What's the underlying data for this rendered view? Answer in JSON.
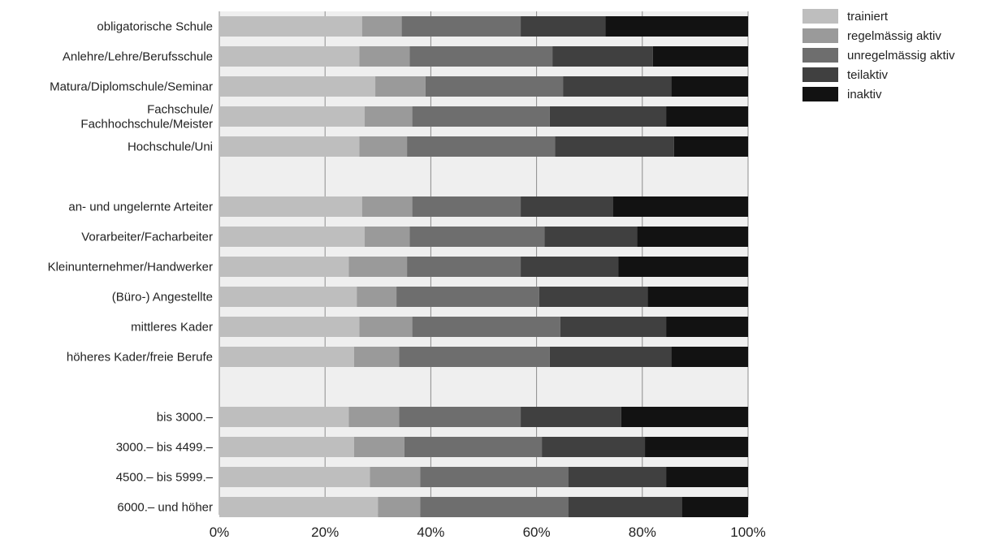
{
  "chart_data": {
    "type": "bar",
    "orientation": "horizontal",
    "stacked": true,
    "title": "",
    "xlabel": "",
    "ylabel": "",
    "xlim": [
      0,
      100
    ],
    "x_ticks": [
      "0%",
      "20%",
      "40%",
      "60%",
      "80%",
      "100%"
    ],
    "grid": true,
    "legend_position": "top-right",
    "plot_background": "#efefef",
    "categories": [
      "obligatorische Schule",
      "Anlehre/Lehre/Berufsschule",
      "Matura/Diplomschule/Seminar",
      "Fachschule/\nFachhochschule/Meister",
      "Hochschule/Uni",
      "",
      "an- und ungelernte Arteiter",
      "Vorarbeiter/Facharbeiter",
      "Kleinunternehmer/Handwerker",
      "(Büro-) Angestellte",
      "mittleres Kader",
      "höheres Kader/freie Berufe",
      "",
      "bis 3000.–",
      "3000.– bis 4499.–",
      "4500.– bis 5999.–",
      "6000.– und höher"
    ],
    "series": [
      {
        "name": "trainiert",
        "color": "#bebebe",
        "values": [
          27,
          26.5,
          29.5,
          27.5,
          26.5,
          null,
          27,
          27.5,
          24.5,
          26,
          26.5,
          25.5,
          null,
          24.5,
          25.5,
          28.5,
          30
        ]
      },
      {
        "name": "regelmässig aktiv",
        "color": "#9a9a9a",
        "values": [
          7.5,
          9.5,
          9.5,
          9,
          9,
          null,
          9.5,
          8.5,
          11,
          7.5,
          10,
          8.5,
          null,
          9.5,
          9.5,
          9.5,
          8
        ]
      },
      {
        "name": "unregelmässig aktiv",
        "color": "#6e6e6e",
        "values": [
          22.5,
          27,
          26,
          26,
          28,
          null,
          20.5,
          25.5,
          21.5,
          27,
          28,
          28.5,
          null,
          23,
          26,
          28,
          28
        ]
      },
      {
        "name": "teilaktiv",
        "color": "#404040",
        "values": [
          16,
          19,
          20.5,
          22,
          22.5,
          null,
          17.5,
          17.5,
          18.5,
          20.5,
          20,
          23,
          null,
          19,
          19.5,
          18.5,
          21.5
        ]
      },
      {
        "name": "inaktiv",
        "color": "#121212",
        "values": [
          27,
          18,
          14.5,
          15.5,
          14,
          null,
          25.5,
          21,
          24.5,
          19,
          15.5,
          14.5,
          null,
          24,
          19.5,
          15.5,
          12.5
        ]
      }
    ]
  }
}
